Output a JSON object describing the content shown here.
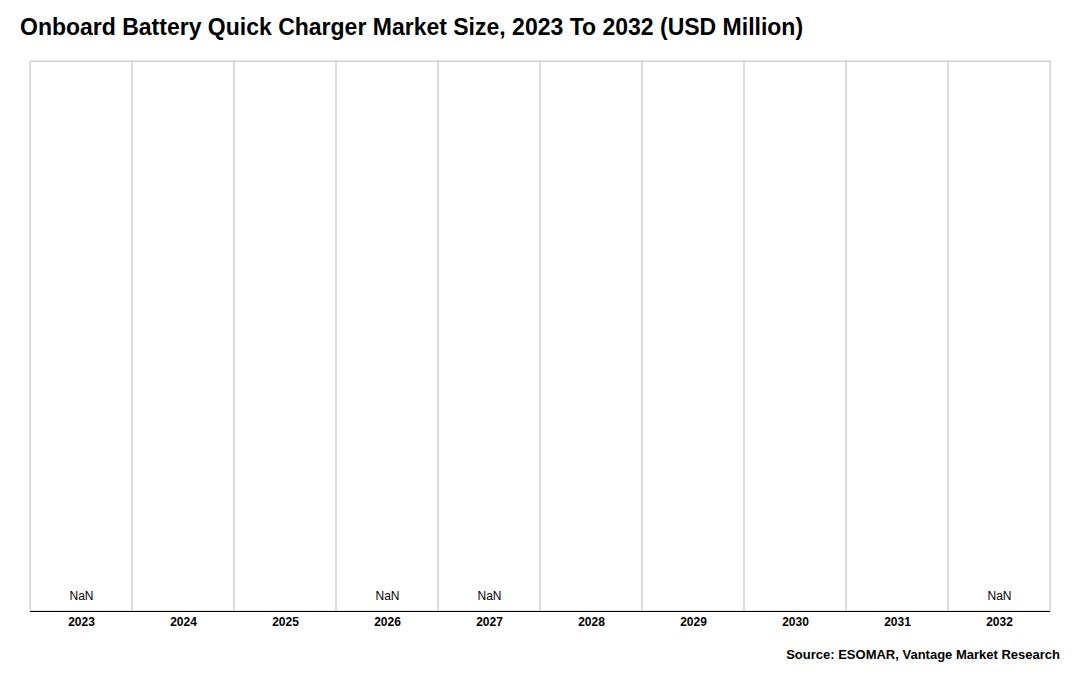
{
  "chart_data": {
    "type": "bar",
    "title": "Onboard Battery Quick Charger Market Size, 2023 To 2032 (USD Million)",
    "categories": [
      "2023",
      "2024",
      "2025",
      "2026",
      "2027",
      "2028",
      "2029",
      "2030",
      "2031",
      "2032"
    ],
    "values": [
      null,
      null,
      null,
      null,
      null,
      null,
      null,
      null,
      null,
      null
    ],
    "value_labels": [
      "NaN",
      null,
      null,
      "NaN",
      "NaN",
      null,
      null,
      null,
      null,
      "NaN"
    ],
    "ylim": [
      0,
      1
    ],
    "yticks": [],
    "tick_labels": "x",
    "grid": true,
    "caption": "Source: ESOMAR, Vantage Market Research"
  }
}
